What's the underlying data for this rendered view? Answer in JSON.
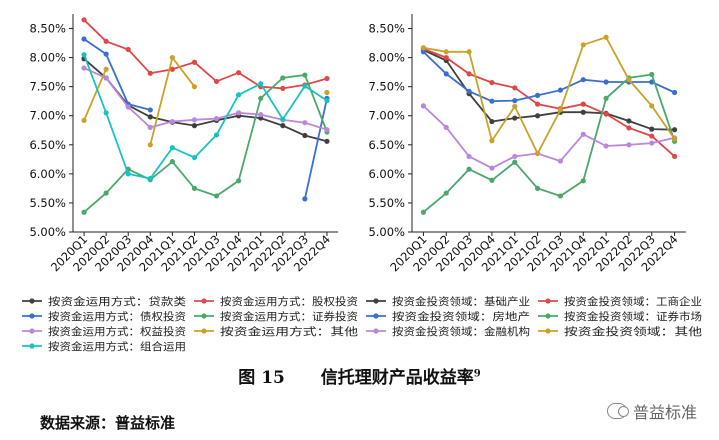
{
  "caption": {
    "label": "图 15",
    "title": "信托理财产品收益率",
    "note": "9"
  },
  "source": "数据来源：普益标准",
  "watermark": {
    "text": "普益标准",
    "icon": "wechat-icon"
  },
  "chart_data": [
    {
      "type": "line",
      "categories": [
        "2020Q1",
        "2020Q2",
        "2020Q3",
        "2020Q4",
        "2021Q1",
        "2021Q2",
        "2021Q3",
        "2021Q4",
        "2022Q1",
        "2022Q2",
        "2022Q3",
        "2022Q4"
      ],
      "yticks": [
        "5.00%",
        "5.50%",
        "6.00%",
        "6.50%",
        "7.00%",
        "7.50%",
        "8.00%",
        "8.50%"
      ],
      "ylim": [
        5.0,
        8.75
      ],
      "series": [
        {
          "name": "按资金运用方式：贷款类",
          "color": "#404040",
          "values": [
            7.98,
            7.65,
            7.18,
            6.98,
            6.89,
            6.83,
            6.92,
            7.0,
            6.96,
            6.83,
            6.66,
            6.56
          ]
        },
        {
          "name": "按资金运用方式：股权投资",
          "color": "#e04848",
          "values": [
            8.65,
            8.28,
            8.14,
            7.73,
            7.8,
            7.92,
            7.59,
            7.74,
            7.5,
            7.47,
            7.53,
            7.64
          ]
        },
        {
          "name": "按资金运用方式：债权投资",
          "color": "#3a6fd0",
          "values": [
            8.32,
            8.06,
            7.2,
            7.1,
            null,
            null,
            null,
            null,
            null,
            null,
            5.57,
            7.3
          ]
        },
        {
          "name": "按资金运用方式：证券投资",
          "color": "#4aa86a",
          "values": [
            5.34,
            5.67,
            6.08,
            5.9,
            6.21,
            5.75,
            5.62,
            5.88,
            7.3,
            7.65,
            7.7,
            6.72
          ]
        },
        {
          "name": "按资金运用方式：权益投资",
          "color": "#b987dd",
          "values": [
            7.82,
            7.65,
            7.15,
            6.8,
            6.9,
            6.93,
            6.95,
            7.05,
            7.02,
            6.93,
            6.88,
            6.76
          ]
        },
        {
          "name": "按资金运用方式：其他",
          "color": "#c9a227",
          "values": [
            6.92,
            7.8,
            null,
            6.5,
            8.0,
            7.5,
            null,
            null,
            null,
            null,
            null,
            7.4
          ]
        },
        {
          "name": "按资金运用方式：组合运用",
          "color": "#19c2c2",
          "values": [
            8.05,
            7.05,
            6.0,
            5.92,
            6.45,
            6.28,
            6.67,
            7.36,
            7.55,
            6.94,
            7.51,
            7.26
          ]
        }
      ]
    },
    {
      "type": "line",
      "categories": [
        "2020Q1",
        "2020Q2",
        "2020Q3",
        "2020Q4",
        "2021Q1",
        "2021Q2",
        "2021Q3",
        "2021Q4",
        "2022Q1",
        "2022Q2",
        "2022Q3",
        "2022Q4"
      ],
      "yticks": [
        "5.00%",
        "5.50%",
        "6.00%",
        "6.50%",
        "7.00%",
        "7.50%",
        "8.00%",
        "8.50%"
      ],
      "ylim": [
        5.0,
        8.75
      ],
      "series": [
        {
          "name": "按资金投资领域：基础产业",
          "color": "#404040",
          "values": [
            8.13,
            7.95,
            7.38,
            6.9,
            6.96,
            7.0,
            7.06,
            7.06,
            7.04,
            6.91,
            6.77,
            6.76
          ]
        },
        {
          "name": "按资金投资领域：工商企业",
          "color": "#e04848",
          "values": [
            8.15,
            8.0,
            7.72,
            7.57,
            7.48,
            7.2,
            7.12,
            7.2,
            7.03,
            6.79,
            6.65,
            6.3
          ]
        },
        {
          "name": "按资金投资领域：房地产",
          "color": "#3a6fd0",
          "values": [
            8.1,
            7.72,
            7.42,
            7.25,
            7.26,
            7.35,
            7.44,
            7.62,
            7.58,
            7.58,
            7.58,
            7.4
          ]
        },
        {
          "name": "按资金投资领域：证券市场",
          "color": "#4aa86a",
          "values": [
            5.34,
            5.67,
            6.08,
            5.89,
            6.2,
            5.75,
            5.62,
            5.88,
            7.3,
            7.65,
            7.71,
            6.56
          ]
        },
        {
          "name": "按资金投资领域：金融机构",
          "color": "#b987dd",
          "values": [
            7.17,
            6.8,
            6.3,
            6.1,
            6.3,
            6.35,
            6.22,
            6.68,
            6.48,
            6.5,
            6.53,
            6.62
          ]
        },
        {
          "name": "按资金投资领域：其他",
          "color": "#c9a227",
          "values": [
            8.17,
            8.1,
            8.1,
            6.57,
            7.16,
            6.35,
            7.1,
            8.22,
            8.35,
            7.62,
            7.17,
            6.6
          ]
        }
      ]
    }
  ]
}
